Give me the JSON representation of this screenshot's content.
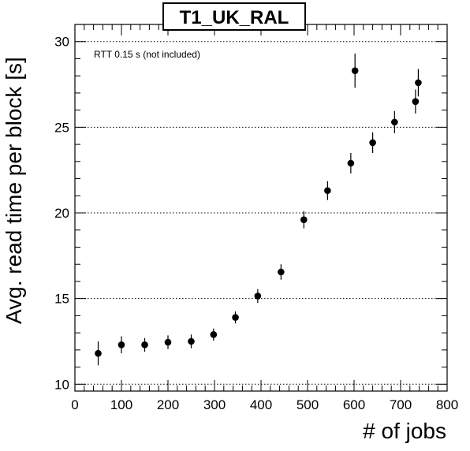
{
  "chart_data": {
    "type": "scatter",
    "title": "T1_UK_RAL",
    "xlabel": "# of jobs",
    "ylabel": "Avg. read time per block [s]",
    "annotation": "RTT 0.15 s (not included)",
    "xlim": [
      0,
      800
    ],
    "ylim": [
      9.6,
      31
    ],
    "x_ticks": [
      0,
      100,
      200,
      300,
      400,
      500,
      600,
      700,
      800
    ],
    "y_ticks": [
      10,
      15,
      20,
      25,
      30
    ],
    "grid": "horizontal dotted",
    "points": [
      {
        "x": 50,
        "y": 11.8,
        "err": 0.7
      },
      {
        "x": 100,
        "y": 12.3,
        "err": 0.5
      },
      {
        "x": 150,
        "y": 12.3,
        "err": 0.4
      },
      {
        "x": 200,
        "y": 12.45,
        "err": 0.4
      },
      {
        "x": 250,
        "y": 12.5,
        "err": 0.4
      },
      {
        "x": 298,
        "y": 12.9,
        "err": 0.35
      },
      {
        "x": 345,
        "y": 13.9,
        "err": 0.35
      },
      {
        "x": 393,
        "y": 15.15,
        "err": 0.4
      },
      {
        "x": 443,
        "y": 16.55,
        "err": 0.45
      },
      {
        "x": 492,
        "y": 19.6,
        "err": 0.5
      },
      {
        "x": 543,
        "y": 21.3,
        "err": 0.55
      },
      {
        "x": 593,
        "y": 22.9,
        "err": 0.6
      },
      {
        "x": 602,
        "y": 28.3,
        "err": 1.0
      },
      {
        "x": 640,
        "y": 24.1,
        "err": 0.6
      },
      {
        "x": 687,
        "y": 25.3,
        "err": 0.65
      },
      {
        "x": 732,
        "y": 26.5,
        "err": 0.7
      },
      {
        "x": 738,
        "y": 27.6,
        "err": 0.8
      }
    ]
  }
}
